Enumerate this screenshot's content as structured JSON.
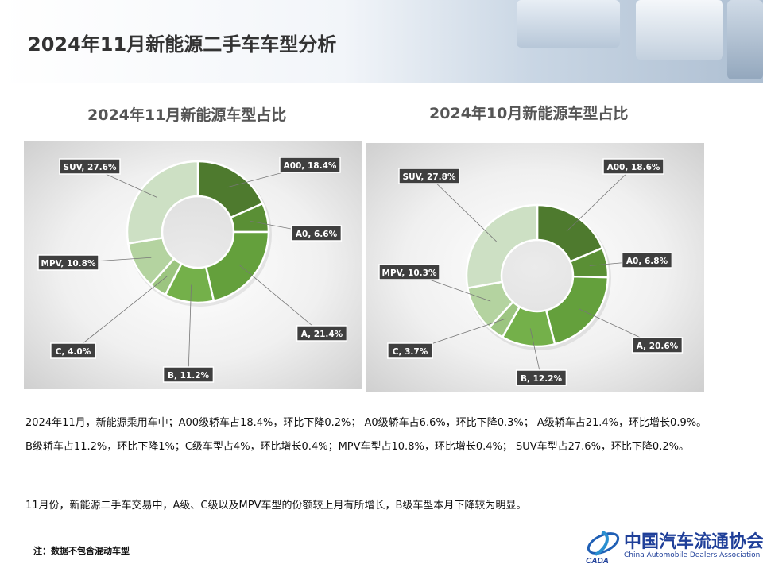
{
  "header": {
    "title": "2024年11月新能源二手车车型分析"
  },
  "chart_data": [
    {
      "type": "pie",
      "donut": true,
      "title": "2024年11月新能源车型占比",
      "categories": [
        "A00",
        "A0",
        "A",
        "B",
        "C",
        "MPV",
        "SUV"
      ],
      "values": [
        18.4,
        6.6,
        21.4,
        11.2,
        4.0,
        10.8,
        27.6
      ],
      "labels": [
        "A00, 18.4%",
        "A0, 6.6%",
        "A, 21.4%",
        "B, 11.2%",
        "C, 4.0%",
        "MPV, 10.8%",
        "SUV, 27.6%"
      ],
      "colors": [
        "#4e7a2e",
        "#5a8f35",
        "#64a03c",
        "#74b04a",
        "#9cc580",
        "#b4d3a0",
        "#cde0c4"
      ]
    },
    {
      "type": "pie",
      "donut": true,
      "title": "2024年10月新能源车型占比",
      "categories": [
        "A00",
        "A0",
        "A",
        "B",
        "C",
        "MPV",
        "SUV"
      ],
      "values": [
        18.6,
        6.8,
        20.6,
        12.2,
        3.7,
        10.3,
        27.8
      ],
      "labels": [
        "A00, 18.6%",
        "A0, 6.8%",
        "A, 20.6%",
        "B, 12.2%",
        "C, 3.7%",
        "MPV, 10.3%",
        "SUV, 27.8%"
      ],
      "colors": [
        "#4e7a2e",
        "#5a8f35",
        "#64a03c",
        "#74b04a",
        "#9cc580",
        "#b4d3a0",
        "#cde0c4"
      ]
    }
  ],
  "text": {
    "p1": "2024年11月，新能源乘用车中；A00级轿车占18.4%，环比下降0.2%；  A0级轿车占6.6%，环比下降0.3%；  A级轿车占21.4%，环比增长0.9%。 B级轿车占11.2%，环比下降1%；C级车型占4%，环比增长0.4%；MPV车型占10.8%，环比增长0.4%；  SUV车型占27.6%，环比下降0.2%。",
    "p2": "11月份，新能源二手车交易中，A级、C级以及MPV车型的份额较上月有所增长，B级车型本月下降较为明显。",
    "note": "注：数据不包含混动车型"
  },
  "logo": {
    "cn": "中国汽车流通协会",
    "en": "China Automobile Dealers Association",
    "mark": "CADA"
  }
}
